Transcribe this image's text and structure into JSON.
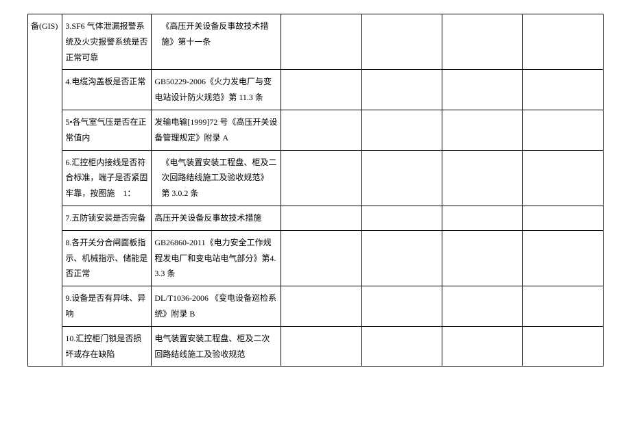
{
  "table": {
    "rows": [
      {
        "col1": "备(GIS)",
        "col2": "3.SF6 气体泄漏报警系统及火灾报警系统是否正常可靠",
        "col3": "《高压开关设备反事故技术措施》第十一条",
        "col4": "",
        "col5": "",
        "col6": "",
        "col7": ""
      },
      {
        "col2": "4.电缆沟盖板是否正常",
        "col3": "GB50229-2006《火力发电厂与变电站设计防火规范》第 11.3 条",
        "col4": "",
        "col5": "",
        "col6": "",
        "col7": ""
      },
      {
        "col2": "5•各气室气压是否在正常值内",
        "col3": "发输电输[1999]72 号《高压开关设备管理规定》附录 A",
        "col4": "",
        "col5": "",
        "col6": "",
        "col7": ""
      },
      {
        "col2": "6.汇控柜内接线是否符合标准，端子是否紧固牢靠，按图施　1：",
        "col3": "《电气装置安装工程盘、柜及二次回路结线施工及验收规范》 第 3.0.2 条",
        "col4": "",
        "col5": "",
        "col6": "",
        "col7": ""
      },
      {
        "col2": "7.五防锁安装是否完备",
        "col3": "高压开关设备反事故技术措施",
        "col4": "",
        "col5": "",
        "col6": "",
        "col7": ""
      },
      {
        "col2": "8.各开关分合闸面板指示、机械指示、储能是否正常",
        "col3": "GB26860-2011《电力安全工作规程发电厂和变电站电气部分》第4.3.3 条",
        "col4": "",
        "col5": "",
        "col6": "",
        "col7": ""
      },
      {
        "col2": "9.设备是否有异味、异响",
        "col3": "DL/T1036-2006 《变电设备巡检系统》附录 B",
        "col4": "",
        "col5": "",
        "col6": "",
        "col7": ""
      },
      {
        "col2": "10.汇控柜门锁是否损坏或存在缺陷",
        "col3": "电气装置安装工程盘、柜及二次回路结线施工及验收规范",
        "col4": "",
        "col5": "",
        "col6": "",
        "col7": ""
      }
    ]
  }
}
